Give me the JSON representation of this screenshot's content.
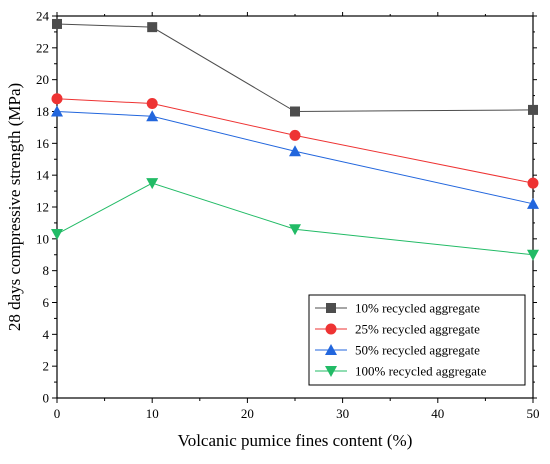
{
  "chart_data": {
    "type": "line",
    "xlabel": "Volcanic pumice fines content (%)",
    "ylabel": "28 days compressive strength (MPa)",
    "x": [
      0,
      10,
      25,
      50
    ],
    "xlim": [
      0,
      50
    ],
    "ylim": [
      0,
      24
    ],
    "xticks": [
      0,
      10,
      20,
      30,
      40,
      50
    ],
    "yticks": [
      0,
      2,
      4,
      6,
      8,
      10,
      12,
      14,
      16,
      18,
      20,
      22,
      24
    ],
    "grid": false,
    "legend_position": "bottom-right",
    "series": [
      {
        "name": "10% recycled aggregate",
        "values": [
          23.5,
          23.3,
          18.0,
          18.1
        ],
        "color": "#4d4d4d",
        "marker": "square"
      },
      {
        "name": "25% recycled aggregate",
        "values": [
          18.8,
          18.5,
          16.5,
          13.5
        ],
        "color": "#ee3333",
        "marker": "circle"
      },
      {
        "name": "50% recycled aggregate",
        "values": [
          18.0,
          17.7,
          15.5,
          12.2
        ],
        "color": "#2266dd",
        "marker": "triangle-up"
      },
      {
        "name": "100% recycled aggregate",
        "values": [
          10.3,
          13.5,
          10.6,
          9.0
        ],
        "color": "#22bb66",
        "marker": "triangle-down"
      }
    ]
  }
}
